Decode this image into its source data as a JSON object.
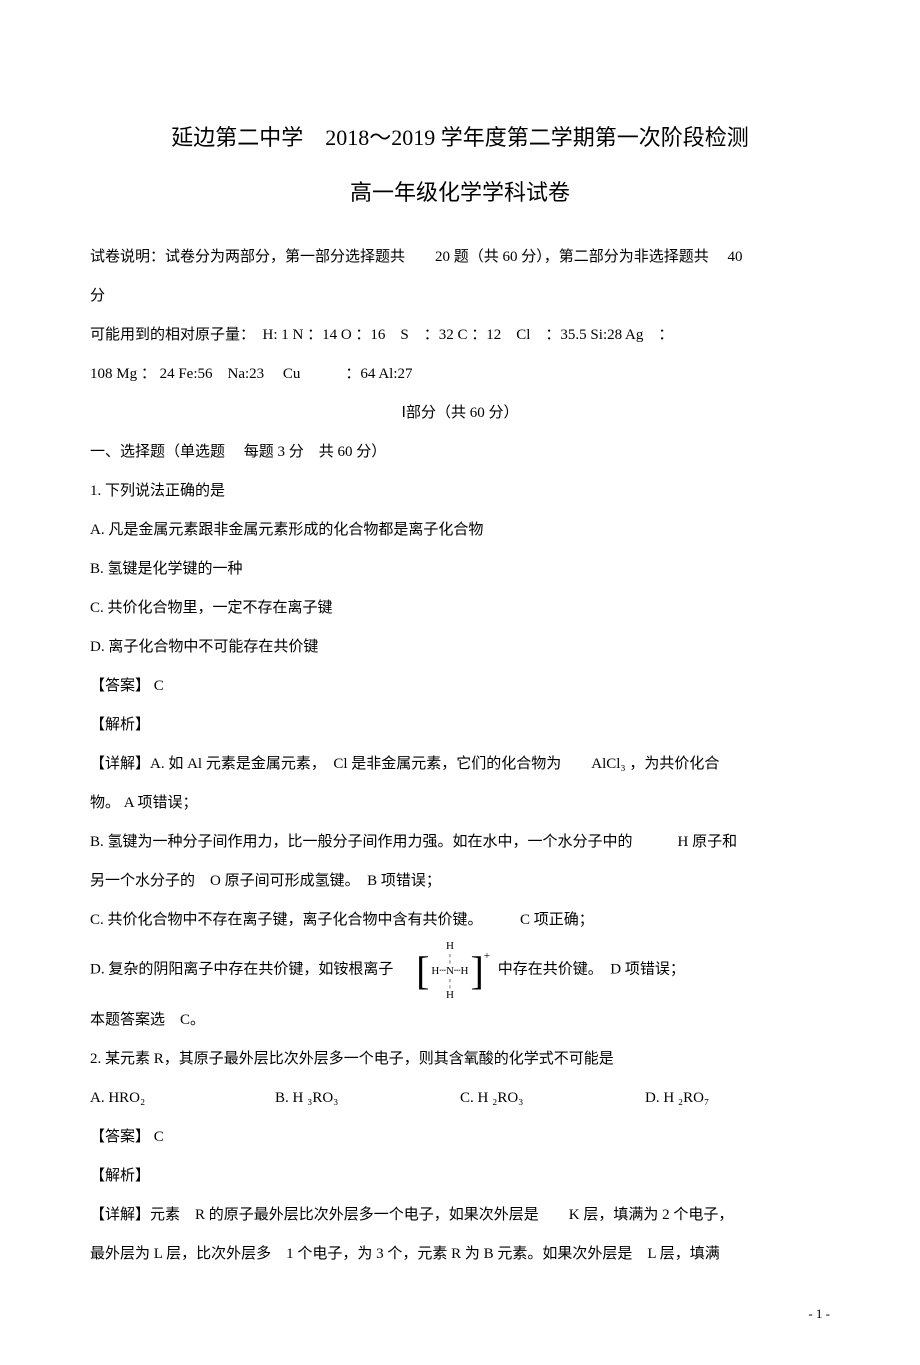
{
  "header": {
    "title_main": "延边第二中学　2018～2019 学年度第二学期第一次阶段检测",
    "title_sub": "高一年级化学学科试卷"
  },
  "intro": {
    "line1": "试卷说明：试卷分为两部分，第一部分选择题共　　20 题（共 60 分），第二部分为非选择题共　 40",
    "line2": "分",
    "line3": "可能用到的相对原子量：　H: 1  N ：14  O ：16　S　：32  C ：12　Cl　：35.5  Si:28  Ag　：",
    "line4": "108  Mg ： 24  Fe:56　Na:23　 Cu　　　：64  Al:27",
    "section_header": "Ⅰ部分（共 60 分）",
    "choice_header": "一、选择题（单选题　 每题 3 分　共 60 分）"
  },
  "q1": {
    "stem": "1. 下列说法正确的是",
    "optA": "A.  凡是金属元素跟非金属元素形成的化合物都是离子化合物",
    "optB": "B.  氢键是化学键的一种",
    "optC": "C.  共价化合物里，一定不存在离子键",
    "optD": "D.  离子化合物中不可能存在共价键",
    "answer_label": "【答案】 C",
    "explain_label": "【解析】",
    "detail_A": "【详解】A.  如 Al 元素是金属元素，　Cl 是非金属元素，它们的化合物为　　AlCl₃ ，为共价化合",
    "detail_A2": "物。 A 项错误；",
    "detail_B": "B.  氢键为一种分子间作用力，比一般分子间作用力强。如在水中，一个水分子中的　　　H 原子和",
    "detail_B2": "另一个水分子的　O 原子间可形成氢键。　B 项错误；",
    "detail_C": "C.  共价化合物中不存在离子键，离子化合物中含有共价键。　　　C 项正确；",
    "detail_D_pre": "D.  复杂的阴阳离子中存在共价键，如铵根离子　",
    "detail_D_post": "中存在共价键。　D 项错误；",
    "conclusion": "本题答案选　C。"
  },
  "q2": {
    "stem": "2. 某元素 R，其原子最外层比次外层多一个电子，则其含氧酸的化学式不可能是",
    "optA": "A. HRO₂",
    "optB": "B. H ₃RO₃",
    "optC": "C. H ₂RO₃",
    "optD": "D. H ₂RO₇",
    "answer_label": "【答案】 C",
    "explain_label": "【解析】",
    "detail": "【详解】元素　R 的原子最外层比次外层多一个电子，如果次外层是　　K 层，填满为 2 个电子，",
    "detail2": "最外层为 L 层，比次外层多　1 个电子，为 3 个，元素 R 为 B 元素。如果次外层是　L 层，填满"
  },
  "page_number": "- 1 -"
}
